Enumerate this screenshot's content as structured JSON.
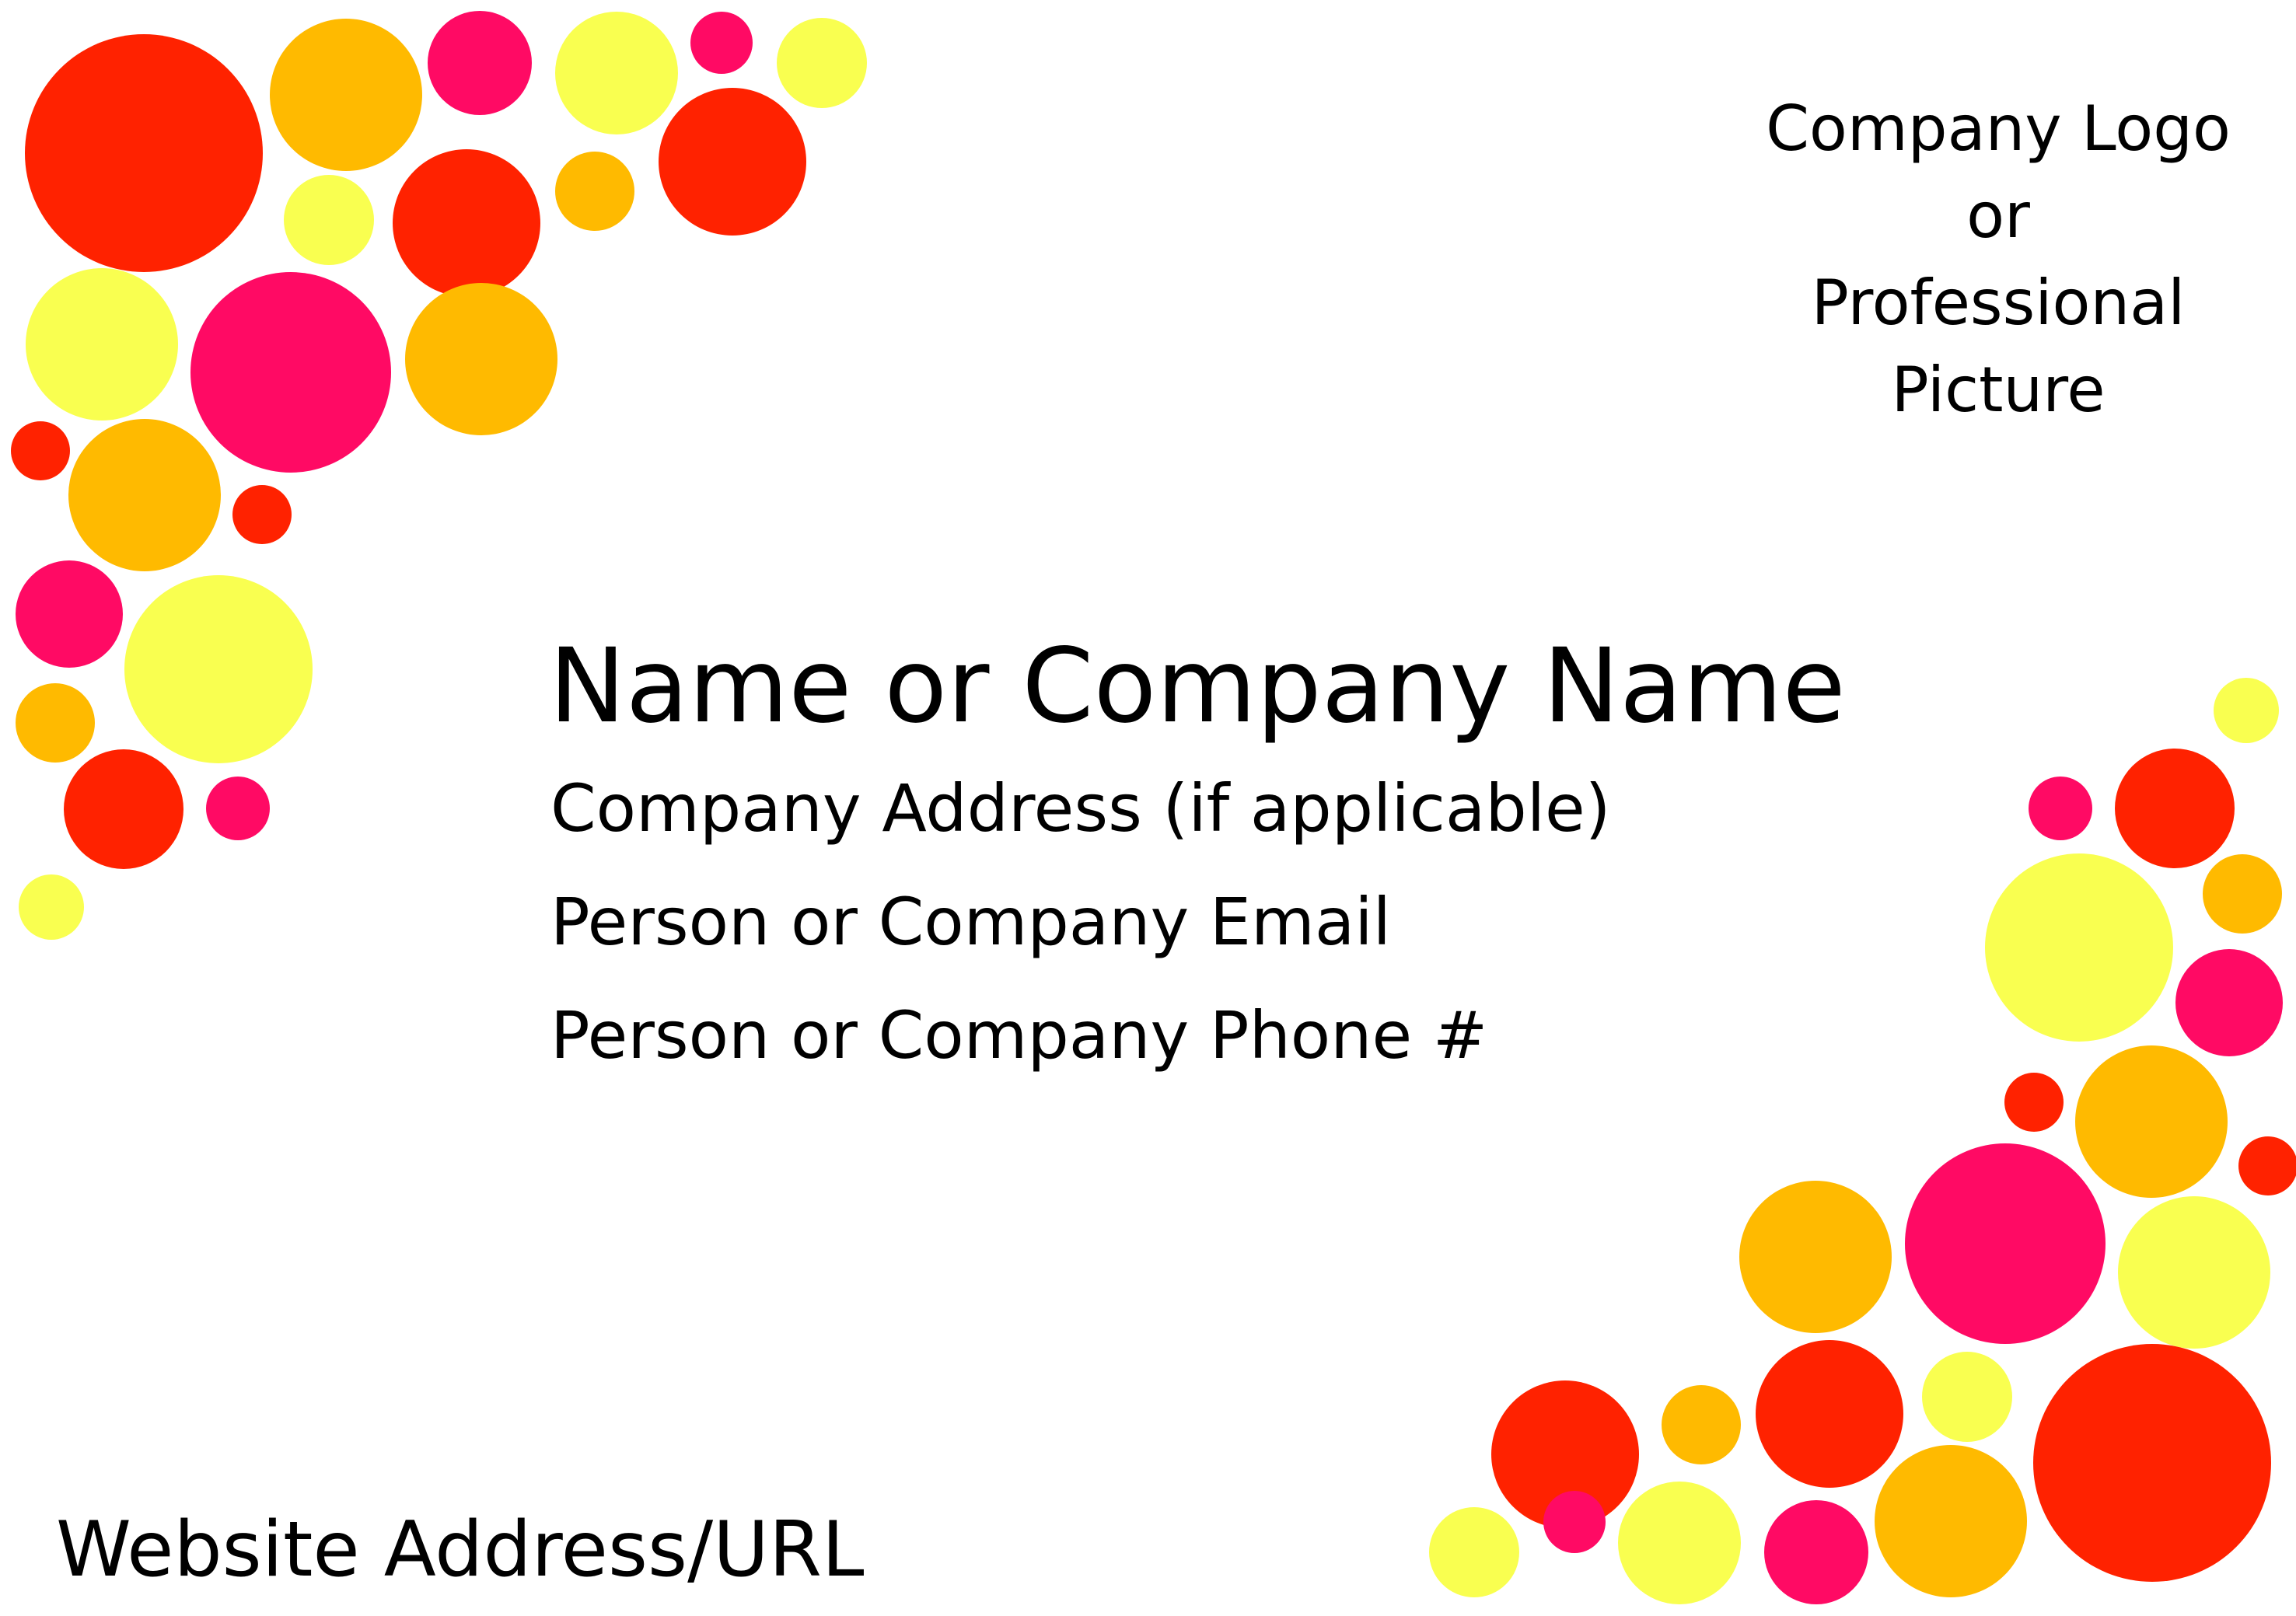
{
  "card": {
    "logo_lines": [
      "Company Logo",
      "or",
      "Professional",
      "Picture"
    ],
    "name": "Name or Company Name",
    "address": "Company Address (if applicable)",
    "email": "Person or Company Email",
    "phone": "Person or Company Phone #",
    "website": "Website Address/URL"
  },
  "colors": {
    "red": "#ff2200",
    "pink": "#ff0a64",
    "orange": "#ffba00",
    "yellow": "#f9ff50"
  }
}
